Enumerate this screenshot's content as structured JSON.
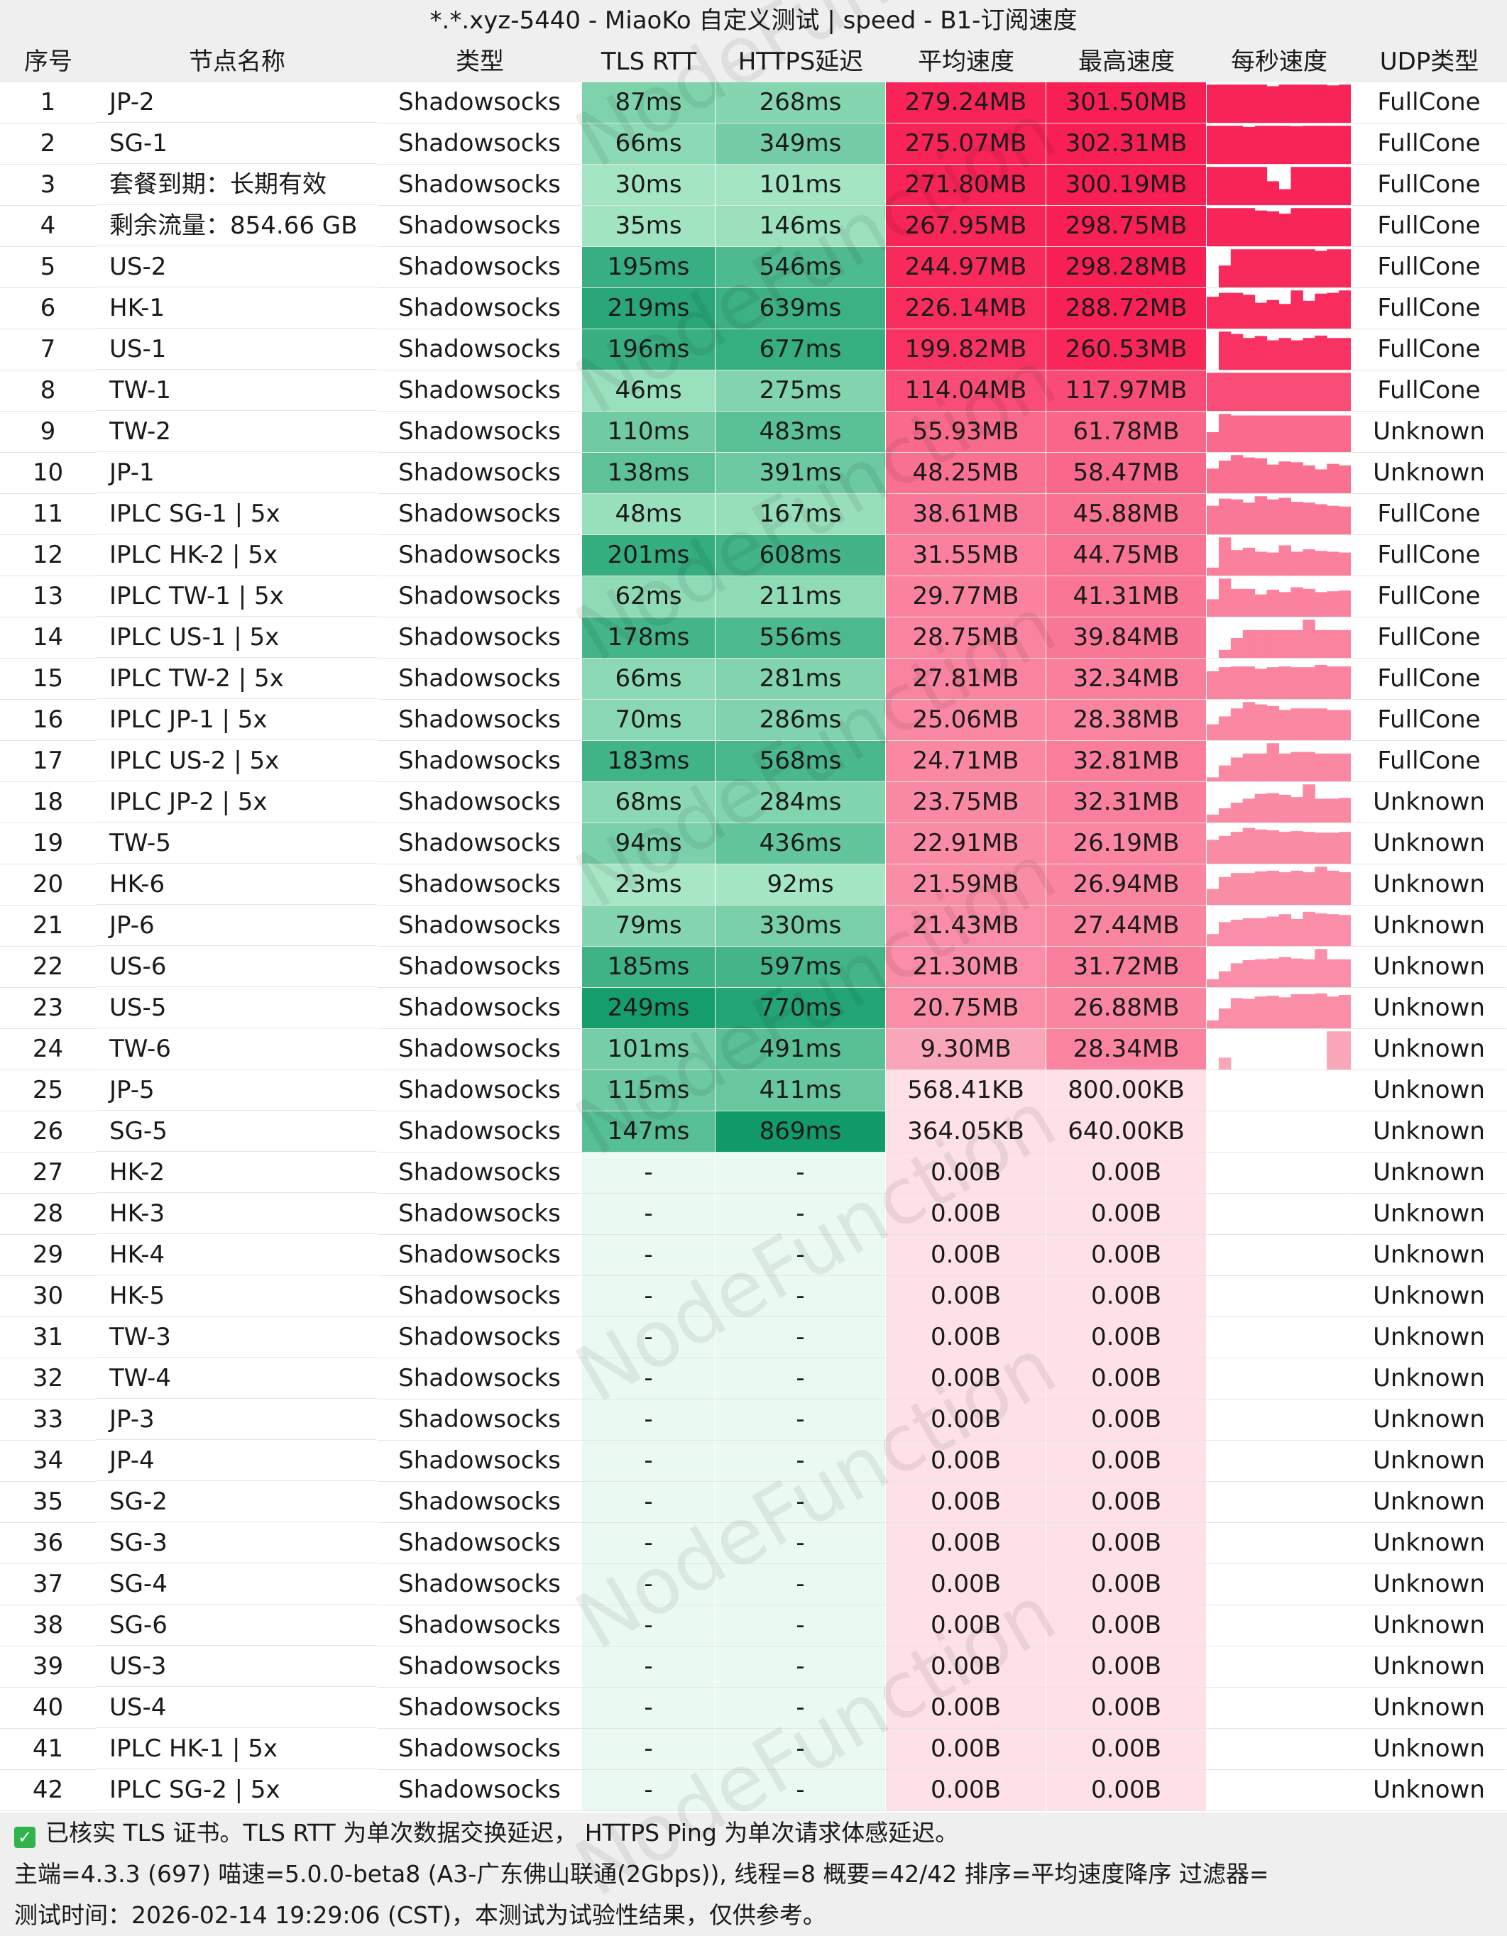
{
  "title": "*.*.xyz-5440 - MiaoKo 自定义测试 | speed - B1-订阅速度",
  "watermark": "NodeFunction",
  "columns": {
    "num": "序号",
    "name": "节点名称",
    "type": "类型",
    "tls_rtt": "TLS RTT",
    "https_delay": "HTTPS延迟",
    "avg_speed": "平均速度",
    "max_speed": "最高速度",
    "per_second": "每秒速度",
    "udp": "UDP类型"
  },
  "rows": [
    {
      "num": "1",
      "name": "JP-2",
      "type": "Shadowsocks",
      "tls": "87ms",
      "https": "268ms",
      "avg": "279.24MB",
      "max": "301.50MB",
      "udp": "FullCone",
      "spark": [
        96,
        96,
        96,
        96,
        96,
        92,
        96,
        96,
        96,
        96,
        94,
        96
      ]
    },
    {
      "num": "2",
      "name": "SG-1",
      "type": "Shadowsocks",
      "tls": "66ms",
      "https": "349ms",
      "avg": "275.07MB",
      "max": "302.31MB",
      "udp": "FullCone",
      "spark": [
        96,
        96,
        96,
        93,
        96,
        96,
        96,
        95,
        96,
        96,
        96,
        96
      ]
    },
    {
      "num": "3",
      "name": "套餐到期：长期有效",
      "type": "Shadowsocks",
      "tls": "30ms",
      "https": "101ms",
      "avg": "271.80MB",
      "max": "300.19MB",
      "udp": "FullCone",
      "spark": [
        96,
        96,
        96,
        96,
        96,
        60,
        40,
        96,
        96,
        96,
        96,
        96
      ]
    },
    {
      "num": "4",
      "name": "剩余流量：854.66 GB",
      "type": "Shadowsocks",
      "tls": "35ms",
      "https": "146ms",
      "avg": "267.95MB",
      "max": "298.75MB",
      "udp": "FullCone",
      "spark": [
        96,
        96,
        96,
        96,
        90,
        88,
        82,
        96,
        96,
        96,
        96,
        96
      ]
    },
    {
      "num": "5",
      "name": "US-2",
      "type": "Shadowsocks",
      "tls": "195ms",
      "https": "546ms",
      "avg": "244.97MB",
      "max": "298.28MB",
      "udp": "FullCone",
      "spark": [
        0,
        55,
        96,
        96,
        96,
        96,
        96,
        96,
        96,
        92,
        96,
        96
      ]
    },
    {
      "num": "6",
      "name": "HK-1",
      "type": "Shadowsocks",
      "tls": "219ms",
      "https": "639ms",
      "avg": "226.14MB",
      "max": "288.72MB",
      "udp": "FullCone",
      "spark": [
        80,
        90,
        90,
        85,
        65,
        72,
        62,
        96,
        70,
        88,
        90,
        96
      ]
    },
    {
      "num": "7",
      "name": "US-1",
      "type": "Shadowsocks",
      "tls": "196ms",
      "https": "677ms",
      "avg": "199.82MB",
      "max": "260.53MB",
      "udp": "FullCone",
      "spark": [
        0,
        96,
        90,
        80,
        85,
        74,
        80,
        74,
        80,
        86,
        80,
        80
      ]
    },
    {
      "num": "8",
      "name": "TW-1",
      "type": "Shadowsocks",
      "tls": "46ms",
      "https": "275ms",
      "avg": "114.04MB",
      "max": "117.97MB",
      "udp": "FullCone",
      "spark": [
        96,
        96,
        96,
        96,
        96,
        96,
        96,
        96,
        96,
        96,
        96,
        96
      ]
    },
    {
      "num": "9",
      "name": "TW-2",
      "type": "Shadowsocks",
      "tls": "110ms",
      "https": "483ms",
      "avg": "55.93MB",
      "max": "61.78MB",
      "udp": "Unknown",
      "spark": [
        50,
        96,
        92,
        92,
        92,
        92,
        92,
        92,
        92,
        92,
        92,
        92
      ]
    },
    {
      "num": "10",
      "name": "JP-1",
      "type": "Shadowsocks",
      "tls": "138ms",
      "https": "391ms",
      "avg": "48.25MB",
      "max": "58.47MB",
      "udp": "Unknown",
      "spark": [
        62,
        82,
        96,
        90,
        88,
        72,
        80,
        78,
        70,
        60,
        74,
        70
      ]
    },
    {
      "num": "11",
      "name": "IPLC SG-1 | 5x",
      "type": "Shadowsocks",
      "tls": "48ms",
      "https": "167ms",
      "avg": "38.61MB",
      "max": "45.88MB",
      "udp": "FullCone",
      "spark": [
        72,
        90,
        88,
        80,
        96,
        88,
        92,
        82,
        80,
        76,
        72,
        70
      ]
    },
    {
      "num": "12",
      "name": "IPLC HK-2 | 5x",
      "type": "Shadowsocks",
      "tls": "201ms",
      "https": "608ms",
      "avg": "31.55MB",
      "max": "44.75MB",
      "udp": "FullCone",
      "spark": [
        20,
        96,
        64,
        70,
        60,
        58,
        76,
        60,
        66,
        62,
        60,
        58
      ]
    },
    {
      "num": "13",
      "name": "IPLC TW-1 | 5x",
      "type": "Shadowsocks",
      "tls": "62ms",
      "https": "211ms",
      "avg": "29.77MB",
      "max": "41.31MB",
      "udp": "FullCone",
      "spark": [
        44,
        96,
        70,
        70,
        56,
        68,
        62,
        74,
        70,
        62,
        64,
        66
      ]
    },
    {
      "num": "14",
      "name": "IPLC US-1 | 5x",
      "type": "Shadowsocks",
      "tls": "178ms",
      "https": "556ms",
      "avg": "28.75MB",
      "max": "39.84MB",
      "udp": "FullCone",
      "spark": [
        0,
        20,
        50,
        70,
        70,
        70,
        70,
        70,
        96,
        70,
        70,
        70
      ]
    },
    {
      "num": "15",
      "name": "IPLC TW-2 | 5x",
      "type": "Shadowsocks",
      "tls": "66ms",
      "https": "281ms",
      "avg": "27.81MB",
      "max": "32.34MB",
      "udp": "FullCone",
      "spark": [
        70,
        80,
        82,
        82,
        76,
        80,
        82,
        80,
        80,
        86,
        82,
        82
      ]
    },
    {
      "num": "16",
      "name": "IPLC JP-1 | 5x",
      "type": "Shadowsocks",
      "tls": "70ms",
      "https": "286ms",
      "avg": "25.06MB",
      "max": "28.38MB",
      "udp": "FullCone",
      "spark": [
        40,
        60,
        80,
        96,
        90,
        86,
        76,
        80,
        80,
        80,
        76,
        76
      ]
    },
    {
      "num": "17",
      "name": "IPLC US-2 | 5x",
      "type": "Shadowsocks",
      "tls": "183ms",
      "https": "568ms",
      "avg": "24.71MB",
      "max": "32.81MB",
      "udp": "FullCone",
      "spark": [
        10,
        40,
        60,
        70,
        70,
        96,
        70,
        74,
        74,
        70,
        70,
        70
      ]
    },
    {
      "num": "18",
      "name": "IPLC JP-2 | 5x",
      "type": "Shadowsocks",
      "tls": "68ms",
      "https": "284ms",
      "avg": "23.75MB",
      "max": "32.31MB",
      "udp": "Unknown",
      "spark": [
        20,
        36,
        50,
        60,
        72,
        74,
        70,
        64,
        96,
        60,
        60,
        62
      ]
    },
    {
      "num": "19",
      "name": "TW-5",
      "type": "Shadowsocks",
      "tls": "94ms",
      "https": "436ms",
      "avg": "22.91MB",
      "max": "26.19MB",
      "udp": "Unknown",
      "spark": [
        60,
        70,
        80,
        90,
        86,
        84,
        80,
        82,
        80,
        78,
        78,
        80
      ]
    },
    {
      "num": "20",
      "name": "HK-6",
      "type": "Shadowsocks",
      "tls": "23ms",
      "https": "92ms",
      "avg": "21.59MB",
      "max": "26.94MB",
      "udp": "Unknown",
      "spark": [
        40,
        70,
        80,
        80,
        84,
        86,
        82,
        86,
        82,
        96,
        86,
        82
      ]
    },
    {
      "num": "21",
      "name": "JP-6",
      "type": "Shadowsocks",
      "tls": "79ms",
      "https": "330ms",
      "avg": "21.43MB",
      "max": "27.44MB",
      "udp": "Unknown",
      "spark": [
        30,
        60,
        66,
        70,
        70,
        74,
        80,
        68,
        86,
        82,
        80,
        78
      ]
    },
    {
      "num": "22",
      "name": "US-6",
      "type": "Shadowsocks",
      "tls": "185ms",
      "https": "597ms",
      "avg": "21.30MB",
      "max": "31.72MB",
      "udp": "Unknown",
      "spark": [
        20,
        40,
        60,
        68,
        70,
        72,
        76,
        72,
        70,
        96,
        70,
        70
      ]
    },
    {
      "num": "23",
      "name": "US-5",
      "type": "Shadowsocks",
      "tls": "249ms",
      "https": "770ms",
      "avg": "20.75MB",
      "max": "26.88MB",
      "udp": "Unknown",
      "spark": [
        20,
        50,
        76,
        74,
        80,
        82,
        78,
        86,
        86,
        88,
        80,
        84
      ]
    },
    {
      "num": "24",
      "name": "TW-6",
      "type": "Shadowsocks",
      "tls": "101ms",
      "https": "491ms",
      "avg": "9.30MB",
      "max": "28.34MB",
      "udp": "Unknown",
      "spark": [
        0,
        30,
        0,
        0,
        0,
        0,
        0,
        0,
        0,
        0,
        96,
        96
      ]
    },
    {
      "num": "25",
      "name": "JP-5",
      "type": "Shadowsocks",
      "tls": "115ms",
      "https": "411ms",
      "avg": "568.41KB",
      "max": "800.00KB",
      "udp": "Unknown",
      "spark": []
    },
    {
      "num": "26",
      "name": "SG-5",
      "type": "Shadowsocks",
      "tls": "147ms",
      "https": "869ms",
      "avg": "364.05KB",
      "max": "640.00KB",
      "udp": "Unknown",
      "spark": []
    },
    {
      "num": "27",
      "name": "HK-2",
      "type": "Shadowsocks",
      "tls": "-",
      "https": "-",
      "avg": "0.00B",
      "max": "0.00B",
      "udp": "Unknown",
      "spark": []
    },
    {
      "num": "28",
      "name": "HK-3",
      "type": "Shadowsocks",
      "tls": "-",
      "https": "-",
      "avg": "0.00B",
      "max": "0.00B",
      "udp": "Unknown",
      "spark": []
    },
    {
      "num": "29",
      "name": "HK-4",
      "type": "Shadowsocks",
      "tls": "-",
      "https": "-",
      "avg": "0.00B",
      "max": "0.00B",
      "udp": "Unknown",
      "spark": []
    },
    {
      "num": "30",
      "name": "HK-5",
      "type": "Shadowsocks",
      "tls": "-",
      "https": "-",
      "avg": "0.00B",
      "max": "0.00B",
      "udp": "Unknown",
      "spark": []
    },
    {
      "num": "31",
      "name": "TW-3",
      "type": "Shadowsocks",
      "tls": "-",
      "https": "-",
      "avg": "0.00B",
      "max": "0.00B",
      "udp": "Unknown",
      "spark": []
    },
    {
      "num": "32",
      "name": "TW-4",
      "type": "Shadowsocks",
      "tls": "-",
      "https": "-",
      "avg": "0.00B",
      "max": "0.00B",
      "udp": "Unknown",
      "spark": []
    },
    {
      "num": "33",
      "name": "JP-3",
      "type": "Shadowsocks",
      "tls": "-",
      "https": "-",
      "avg": "0.00B",
      "max": "0.00B",
      "udp": "Unknown",
      "spark": []
    },
    {
      "num": "34",
      "name": "JP-4",
      "type": "Shadowsocks",
      "tls": "-",
      "https": "-",
      "avg": "0.00B",
      "max": "0.00B",
      "udp": "Unknown",
      "spark": []
    },
    {
      "num": "35",
      "name": "SG-2",
      "type": "Shadowsocks",
      "tls": "-",
      "https": "-",
      "avg": "0.00B",
      "max": "0.00B",
      "udp": "Unknown",
      "spark": []
    },
    {
      "num": "36",
      "name": "SG-3",
      "type": "Shadowsocks",
      "tls": "-",
      "https": "-",
      "avg": "0.00B",
      "max": "0.00B",
      "udp": "Unknown",
      "spark": []
    },
    {
      "num": "37",
      "name": "SG-4",
      "type": "Shadowsocks",
      "tls": "-",
      "https": "-",
      "avg": "0.00B",
      "max": "0.00B",
      "udp": "Unknown",
      "spark": []
    },
    {
      "num": "38",
      "name": "SG-6",
      "type": "Shadowsocks",
      "tls": "-",
      "https": "-",
      "avg": "0.00B",
      "max": "0.00B",
      "udp": "Unknown",
      "spark": []
    },
    {
      "num": "39",
      "name": "US-3",
      "type": "Shadowsocks",
      "tls": "-",
      "https": "-",
      "avg": "0.00B",
      "max": "0.00B",
      "udp": "Unknown",
      "spark": []
    },
    {
      "num": "40",
      "name": "US-4",
      "type": "Shadowsocks",
      "tls": "-",
      "https": "-",
      "avg": "0.00B",
      "max": "0.00B",
      "udp": "Unknown",
      "spark": []
    },
    {
      "num": "41",
      "name": "IPLC HK-1 | 5x",
      "type": "Shadowsocks",
      "tls": "-",
      "https": "-",
      "avg": "0.00B",
      "max": "0.00B",
      "udp": "Unknown",
      "spark": []
    },
    {
      "num": "42",
      "name": "IPLC SG-2 | 5x",
      "type": "Shadowsocks",
      "tls": "-",
      "https": "-",
      "avg": "0.00B",
      "max": "0.00B",
      "udp": "Unknown",
      "spark": []
    }
  ],
  "footer": {
    "line1": "已核实 TLS 证书。TLS RTT 为单次数据交换延迟， HTTPS Ping 为单次请求体感延迟。",
    "line2": "主端=4.3.3 (697) 喵速=5.0.0-beta8 (A3-广东佛山联通(2Gbps)), 线程=8 概要=42/42 排序=平均速度降序 过滤器=",
    "line3": "测试时间：2026-02-14 19:29:06 (CST)，本测试为试验性结果，仅供参考。"
  },
  "colors": {
    "header_bg": "#efefef",
    "footer_bg": "#efefef",
    "check_icon": "#2fb34a",
    "latency_empty": "#eafaf2",
    "speed_empty": "#fde1e6",
    "speed_strong": "#f81f54"
  }
}
